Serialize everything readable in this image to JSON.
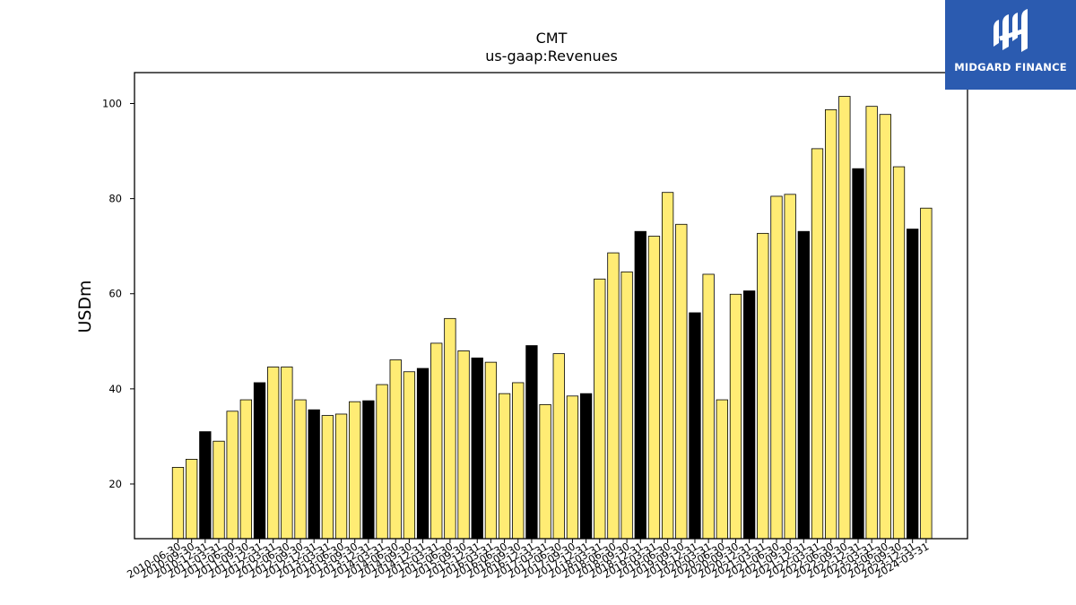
{
  "logo": {
    "text": "MIDGARD FINANCE",
    "color": "#2b5bb0",
    "icon": "midgard-logo-icon"
  },
  "chart_data": {
    "type": "bar",
    "title": "CMT",
    "subtitle": "us-gaap:Revenues",
    "xlabel": "",
    "ylabel": "USDm",
    "ylim": [
      8.5,
      106.5
    ],
    "yticks": [
      20,
      40,
      60,
      80,
      100
    ],
    "grid": false,
    "colors": {
      "quarter": "#ffec74",
      "year_end": "#000000",
      "edge": "#000000"
    },
    "categories": [
      "2010-06-30",
      "2010-09-30",
      "2010-12-31",
      "2011-03-31",
      "2011-06-30",
      "2011-09-30",
      "2011-12-31",
      "2012-03-31",
      "2012-06-30",
      "2012-09-30",
      "2012-12-31",
      "2013-03-31",
      "2013-06-30",
      "2013-09-30",
      "2013-12-31",
      "2014-03-31",
      "2014-06-30",
      "2014-09-30",
      "2014-12-31",
      "2015-03-31",
      "2015-06-30",
      "2015-09-30",
      "2015-12-31",
      "2016-03-31",
      "2016-06-30",
      "2016-09-30",
      "2016-12-31",
      "2017-03-31",
      "2017-06-30",
      "2017-09-30",
      "2017-12-31",
      "2018-03-31",
      "2018-06-30",
      "2018-09-30",
      "2018-12-31",
      "2019-03-31",
      "2019-06-30",
      "2019-09-30",
      "2019-12-31",
      "2020-03-31",
      "2020-06-30",
      "2020-09-30",
      "2020-12-31",
      "2021-03-31",
      "2021-06-30",
      "2021-09-30",
      "2021-12-31",
      "2022-03-31",
      "2022-06-30",
      "2022-09-30",
      "2022-12-31",
      "2023-03-31",
      "2023-06-30",
      "2023-09-30",
      "2023-12-31",
      "2024-03-31"
    ],
    "values": [
      23.5,
      25.2,
      31.0,
      29.0,
      35.3,
      37.7,
      41.3,
      44.6,
      44.6,
      37.7,
      35.6,
      34.4,
      34.7,
      37.3,
      37.5,
      40.9,
      46.1,
      43.6,
      44.3,
      49.6,
      54.8,
      48.0,
      46.5,
      45.6,
      39.0,
      41.3,
      49.1,
      36.7,
      47.4,
      38.5,
      39.0,
      63.1,
      68.6,
      64.6,
      73.1,
      72.1,
      81.3,
      74.6,
      56.0,
      64.1,
      37.7,
      59.9,
      60.6,
      72.7,
      80.5,
      80.9,
      73.1,
      90.5,
      98.7,
      101.5,
      86.3,
      99.4,
      97.7,
      86.7,
      73.6,
      78.0
    ]
  }
}
